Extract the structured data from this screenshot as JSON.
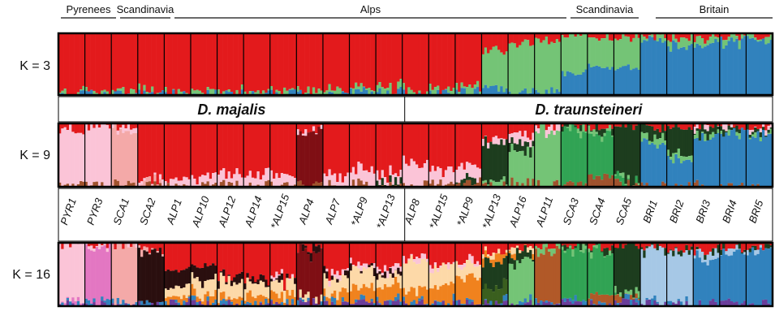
{
  "regions": [
    {
      "label": "Pyrenees",
      "from": 0,
      "to": 2
    },
    {
      "label": "Scandinavia",
      "from": 2,
      "to": 4
    },
    {
      "label": "Alps",
      "from": 4,
      "to": 18
    },
    {
      "label": "Scandinavia",
      "from": 18,
      "to": 21
    },
    {
      "label": "Britain",
      "from": 21,
      "to": 26
    }
  ],
  "species": [
    {
      "label": "D. majalis",
      "from": 0,
      "to": 13
    },
    {
      "label": "D. traunsteineri",
      "from": 13,
      "to": 26
    }
  ],
  "populations": [
    "PYR1",
    "PYR3",
    "SCA1",
    "SCA2",
    "ALP1",
    "ALP10",
    "ALP12",
    "ALP14",
    "*ALP15",
    "ALP4",
    "ALP7",
    "*ALP9",
    "*ALP13",
    "ALP8",
    "*ALP15",
    "*ALP9",
    "*ALP13",
    "ALP16",
    "ALP11",
    "SCA3",
    "SCA4",
    "SCA5",
    "BRI1",
    "BRI2",
    "BRI3",
    "BRI4",
    "BRI5"
  ],
  "chart_data": {
    "type": "bar",
    "stacked": true,
    "description_free": true,
    "panels": [
      {
        "label": "K = 3",
        "colors": [
          "#e31a1c",
          "#74c476",
          "#3182bd"
        ],
        "groups": [
          [
            0.97,
            0.02,
            0.01
          ],
          [
            0.97,
            0.02,
            0.01
          ],
          [
            0.97,
            0.02,
            0.01
          ],
          [
            0.96,
            0.03,
            0.01
          ],
          [
            0.96,
            0.03,
            0.01
          ],
          [
            0.95,
            0.04,
            0.01
          ],
          [
            0.95,
            0.04,
            0.01
          ],
          [
            0.95,
            0.04,
            0.01
          ],
          [
            0.94,
            0.05,
            0.01
          ],
          [
            0.93,
            0.05,
            0.02
          ],
          [
            0.92,
            0.06,
            0.02
          ],
          [
            0.88,
            0.08,
            0.04
          ],
          [
            0.85,
            0.1,
            0.05
          ],
          [
            0.93,
            0.05,
            0.02
          ],
          [
            0.9,
            0.07,
            0.03
          ],
          [
            0.85,
            0.1,
            0.05
          ],
          [
            0.3,
            0.6,
            0.1
          ],
          [
            0.15,
            0.8,
            0.05
          ],
          [
            0.1,
            0.85,
            0.05
          ],
          [
            0.05,
            0.6,
            0.35
          ],
          [
            0.05,
            0.45,
            0.5
          ],
          [
            0.05,
            0.5,
            0.45
          ],
          [
            0.04,
            0.06,
            0.9
          ],
          [
            0.08,
            0.12,
            0.8
          ],
          [
            0.08,
            0.1,
            0.82
          ],
          [
            0.05,
            0.08,
            0.87
          ],
          [
            0.04,
            0.06,
            0.9
          ]
        ]
      },
      {
        "label": "K = 9",
        "colors": [
          "#e31a1c",
          "#fbc4d7",
          "#f4a9a8",
          "#7f0f14",
          "#1d3d1e",
          "#74c476",
          "#31a354",
          "#3182bd",
          "#a0522d"
        ],
        "groups": [
          [
            0.1,
            0.88,
            0.0,
            0.0,
            0.0,
            0.0,
            0.0,
            0.0,
            0.02
          ],
          [
            0.05,
            0.93,
            0.0,
            0.0,
            0.0,
            0.0,
            0.0,
            0.0,
            0.02
          ],
          [
            0.05,
            0.05,
            0.88,
            0.0,
            0.0,
            0.0,
            0.0,
            0.0,
            0.02
          ],
          [
            0.9,
            0.05,
            0.03,
            0.0,
            0.0,
            0.0,
            0.0,
            0.0,
            0.02
          ],
          [
            0.9,
            0.07,
            0.0,
            0.0,
            0.0,
            0.0,
            0.0,
            0.0,
            0.03
          ],
          [
            0.85,
            0.12,
            0.0,
            0.0,
            0.0,
            0.0,
            0.0,
            0.0,
            0.03
          ],
          [
            0.82,
            0.15,
            0.0,
            0.0,
            0.0,
            0.0,
            0.0,
            0.0,
            0.03
          ],
          [
            0.82,
            0.15,
            0.0,
            0.0,
            0.0,
            0.0,
            0.0,
            0.0,
            0.03
          ],
          [
            0.8,
            0.17,
            0.0,
            0.0,
            0.0,
            0.0,
            0.0,
            0.0,
            0.03
          ],
          [
            0.1,
            0.05,
            0.0,
            0.82,
            0.0,
            0.0,
            0.0,
            0.0,
            0.03
          ],
          [
            0.8,
            0.15,
            0.0,
            0.0,
            0.0,
            0.0,
            0.0,
            0.0,
            0.05
          ],
          [
            0.7,
            0.25,
            0.0,
            0.0,
            0.0,
            0.0,
            0.0,
            0.0,
            0.05
          ],
          [
            0.78,
            0.12,
            0.0,
            0.0,
            0.05,
            0.0,
            0.0,
            0.0,
            0.05
          ],
          [
            0.6,
            0.35,
            0.0,
            0.0,
            0.0,
            0.0,
            0.0,
            0.0,
            0.05
          ],
          [
            0.75,
            0.2,
            0.0,
            0.0,
            0.0,
            0.0,
            0.0,
            0.0,
            0.05
          ],
          [
            0.7,
            0.2,
            0.0,
            0.0,
            0.05,
            0.0,
            0.0,
            0.0,
            0.05
          ],
          [
            0.25,
            0.05,
            0.0,
            0.0,
            0.6,
            0.05,
            0.0,
            0.0,
            0.05
          ],
          [
            0.2,
            0.1,
            0.0,
            0.0,
            0.15,
            0.5,
            0.0,
            0.0,
            0.05
          ],
          [
            0.05,
            0.05,
            0.0,
            0.0,
            0.0,
            0.85,
            0.0,
            0.0,
            0.05
          ],
          [
            0.05,
            0.0,
            0.0,
            0.0,
            0.05,
            0.05,
            0.82,
            0.0,
            0.03
          ],
          [
            0.05,
            0.0,
            0.0,
            0.0,
            0.05,
            0.05,
            0.7,
            0.0,
            0.15
          ],
          [
            0.05,
            0.0,
            0.0,
            0.0,
            0.8,
            0.05,
            0.05,
            0.0,
            0.05
          ],
          [
            0.05,
            0.0,
            0.0,
            0.0,
            0.15,
            0.1,
            0.0,
            0.68,
            0.02
          ],
          [
            0.05,
            0.0,
            0.0,
            0.0,
            0.4,
            0.1,
            0.0,
            0.43,
            0.02
          ],
          [
            0.08,
            0.02,
            0.0,
            0.0,
            0.1,
            0.05,
            0.0,
            0.73,
            0.02
          ],
          [
            0.05,
            0.02,
            0.0,
            0.0,
            0.05,
            0.03,
            0.0,
            0.83,
            0.02
          ],
          [
            0.04,
            0.02,
            0.0,
            0.0,
            0.02,
            0.02,
            0.0,
            0.88,
            0.02
          ]
        ]
      },
      {
        "label": "K = 16",
        "colors": [
          "#e31a1c",
          "#fbc4d7",
          "#e377c2",
          "#f4a9a8",
          "#2a0f0f",
          "#7f0f14",
          "#fdd9a8",
          "#f0821e",
          "#1d3d1e",
          "#74c476",
          "#31a354",
          "#3a5f1e",
          "#b15928",
          "#a6c8e6",
          "#3182bd",
          "#6a3d9a"
        ],
        "groups": [
          [
            0.03,
            0.9,
            0.03,
            0.0,
            0.0,
            0.0,
            0.0,
            0.0,
            0.0,
            0.0,
            0.0,
            0.0,
            0.0,
            0.0,
            0.02,
            0.02
          ],
          [
            0.02,
            0.03,
            0.9,
            0.0,
            0.0,
            0.0,
            0.0,
            0.0,
            0.0,
            0.0,
            0.0,
            0.0,
            0.0,
            0.0,
            0.02,
            0.03
          ],
          [
            0.03,
            0.02,
            0.0,
            0.9,
            0.0,
            0.0,
            0.0,
            0.0,
            0.0,
            0.0,
            0.0,
            0.0,
            0.0,
            0.0,
            0.02,
            0.03
          ],
          [
            0.1,
            0.0,
            0.0,
            0.05,
            0.8,
            0.0,
            0.0,
            0.0,
            0.0,
            0.0,
            0.0,
            0.0,
            0.0,
            0.0,
            0.02,
            0.03
          ],
          [
            0.45,
            0.0,
            0.0,
            0.0,
            0.3,
            0.0,
            0.15,
            0.05,
            0.0,
            0.0,
            0.0,
            0.0,
            0.0,
            0.0,
            0.02,
            0.03
          ],
          [
            0.4,
            0.0,
            0.0,
            0.0,
            0.2,
            0.0,
            0.25,
            0.1,
            0.0,
            0.0,
            0.0,
            0.0,
            0.0,
            0.0,
            0.02,
            0.03
          ],
          [
            0.5,
            0.0,
            0.0,
            0.0,
            0.1,
            0.0,
            0.25,
            0.1,
            0.0,
            0.0,
            0.0,
            0.0,
            0.0,
            0.0,
            0.02,
            0.03
          ],
          [
            0.55,
            0.0,
            0.0,
            0.0,
            0.1,
            0.0,
            0.2,
            0.1,
            0.0,
            0.0,
            0.0,
            0.0,
            0.0,
            0.0,
            0.02,
            0.03
          ],
          [
            0.55,
            0.05,
            0.0,
            0.0,
            0.05,
            0.0,
            0.2,
            0.1,
            0.0,
            0.0,
            0.0,
            0.0,
            0.0,
            0.0,
            0.02,
            0.03
          ],
          [
            0.1,
            0.0,
            0.0,
            0.0,
            0.05,
            0.75,
            0.05,
            0.0,
            0.0,
            0.0,
            0.0,
            0.0,
            0.0,
            0.0,
            0.02,
            0.03
          ],
          [
            0.45,
            0.05,
            0.0,
            0.0,
            0.05,
            0.0,
            0.25,
            0.15,
            0.0,
            0.0,
            0.0,
            0.0,
            0.0,
            0.0,
            0.02,
            0.03
          ],
          [
            0.35,
            0.05,
            0.0,
            0.0,
            0.05,
            0.0,
            0.3,
            0.2,
            0.0,
            0.0,
            0.0,
            0.0,
            0.0,
            0.0,
            0.02,
            0.03
          ],
          [
            0.4,
            0.05,
            0.0,
            0.0,
            0.05,
            0.0,
            0.2,
            0.25,
            0.0,
            0.0,
            0.0,
            0.0,
            0.0,
            0.0,
            0.02,
            0.03
          ],
          [
            0.25,
            0.05,
            0.0,
            0.0,
            0.0,
            0.0,
            0.45,
            0.2,
            0.0,
            0.0,
            0.0,
            0.0,
            0.0,
            0.0,
            0.02,
            0.03
          ],
          [
            0.35,
            0.05,
            0.0,
            0.0,
            0.0,
            0.0,
            0.3,
            0.25,
            0.0,
            0.0,
            0.0,
            0.0,
            0.0,
            0.0,
            0.02,
            0.03
          ],
          [
            0.3,
            0.05,
            0.0,
            0.0,
            0.0,
            0.0,
            0.2,
            0.4,
            0.0,
            0.0,
            0.0,
            0.0,
            0.0,
            0.0,
            0.02,
            0.03
          ],
          [
            0.15,
            0.0,
            0.0,
            0.0,
            0.0,
            0.0,
            0.05,
            0.1,
            0.4,
            0.0,
            0.0,
            0.25,
            0.0,
            0.0,
            0.02,
            0.03
          ],
          [
            0.1,
            0.0,
            0.0,
            0.0,
            0.0,
            0.0,
            0.05,
            0.05,
            0.1,
            0.65,
            0.0,
            0.0,
            0.0,
            0.0,
            0.02,
            0.03
          ],
          [
            0.05,
            0.0,
            0.0,
            0.0,
            0.0,
            0.0,
            0.0,
            0.0,
            0.0,
            0.1,
            0.0,
            0.0,
            0.8,
            0.0,
            0.02,
            0.03
          ],
          [
            0.05,
            0.0,
            0.0,
            0.0,
            0.0,
            0.0,
            0.0,
            0.0,
            0.05,
            0.05,
            0.8,
            0.0,
            0.0,
            0.0,
            0.02,
            0.03
          ],
          [
            0.05,
            0.0,
            0.0,
            0.0,
            0.0,
            0.0,
            0.0,
            0.0,
            0.05,
            0.05,
            0.65,
            0.0,
            0.15,
            0.0,
            0.02,
            0.03
          ],
          [
            0.05,
            0.0,
            0.0,
            0.0,
            0.0,
            0.0,
            0.0,
            0.0,
            0.75,
            0.05,
            0.05,
            0.0,
            0.05,
            0.0,
            0.02,
            0.03
          ],
          [
            0.05,
            0.0,
            0.0,
            0.0,
            0.0,
            0.0,
            0.0,
            0.0,
            0.05,
            0.0,
            0.0,
            0.0,
            0.0,
            0.85,
            0.02,
            0.03
          ],
          [
            0.1,
            0.0,
            0.0,
            0.0,
            0.0,
            0.0,
            0.0,
            0.0,
            0.05,
            0.0,
            0.0,
            0.0,
            0.0,
            0.8,
            0.02,
            0.03
          ],
          [
            0.1,
            0.0,
            0.0,
            0.0,
            0.0,
            0.0,
            0.0,
            0.0,
            0.05,
            0.0,
            0.0,
            0.0,
            0.0,
            0.1,
            0.7,
            0.05
          ],
          [
            0.08,
            0.0,
            0.0,
            0.0,
            0.0,
            0.0,
            0.0,
            0.0,
            0.02,
            0.0,
            0.0,
            0.0,
            0.0,
            0.05,
            0.8,
            0.05
          ],
          [
            0.05,
            0.0,
            0.0,
            0.0,
            0.0,
            0.0,
            0.0,
            0.0,
            0.02,
            0.0,
            0.0,
            0.0,
            0.0,
            0.03,
            0.85,
            0.05
          ]
        ]
      }
    ]
  }
}
